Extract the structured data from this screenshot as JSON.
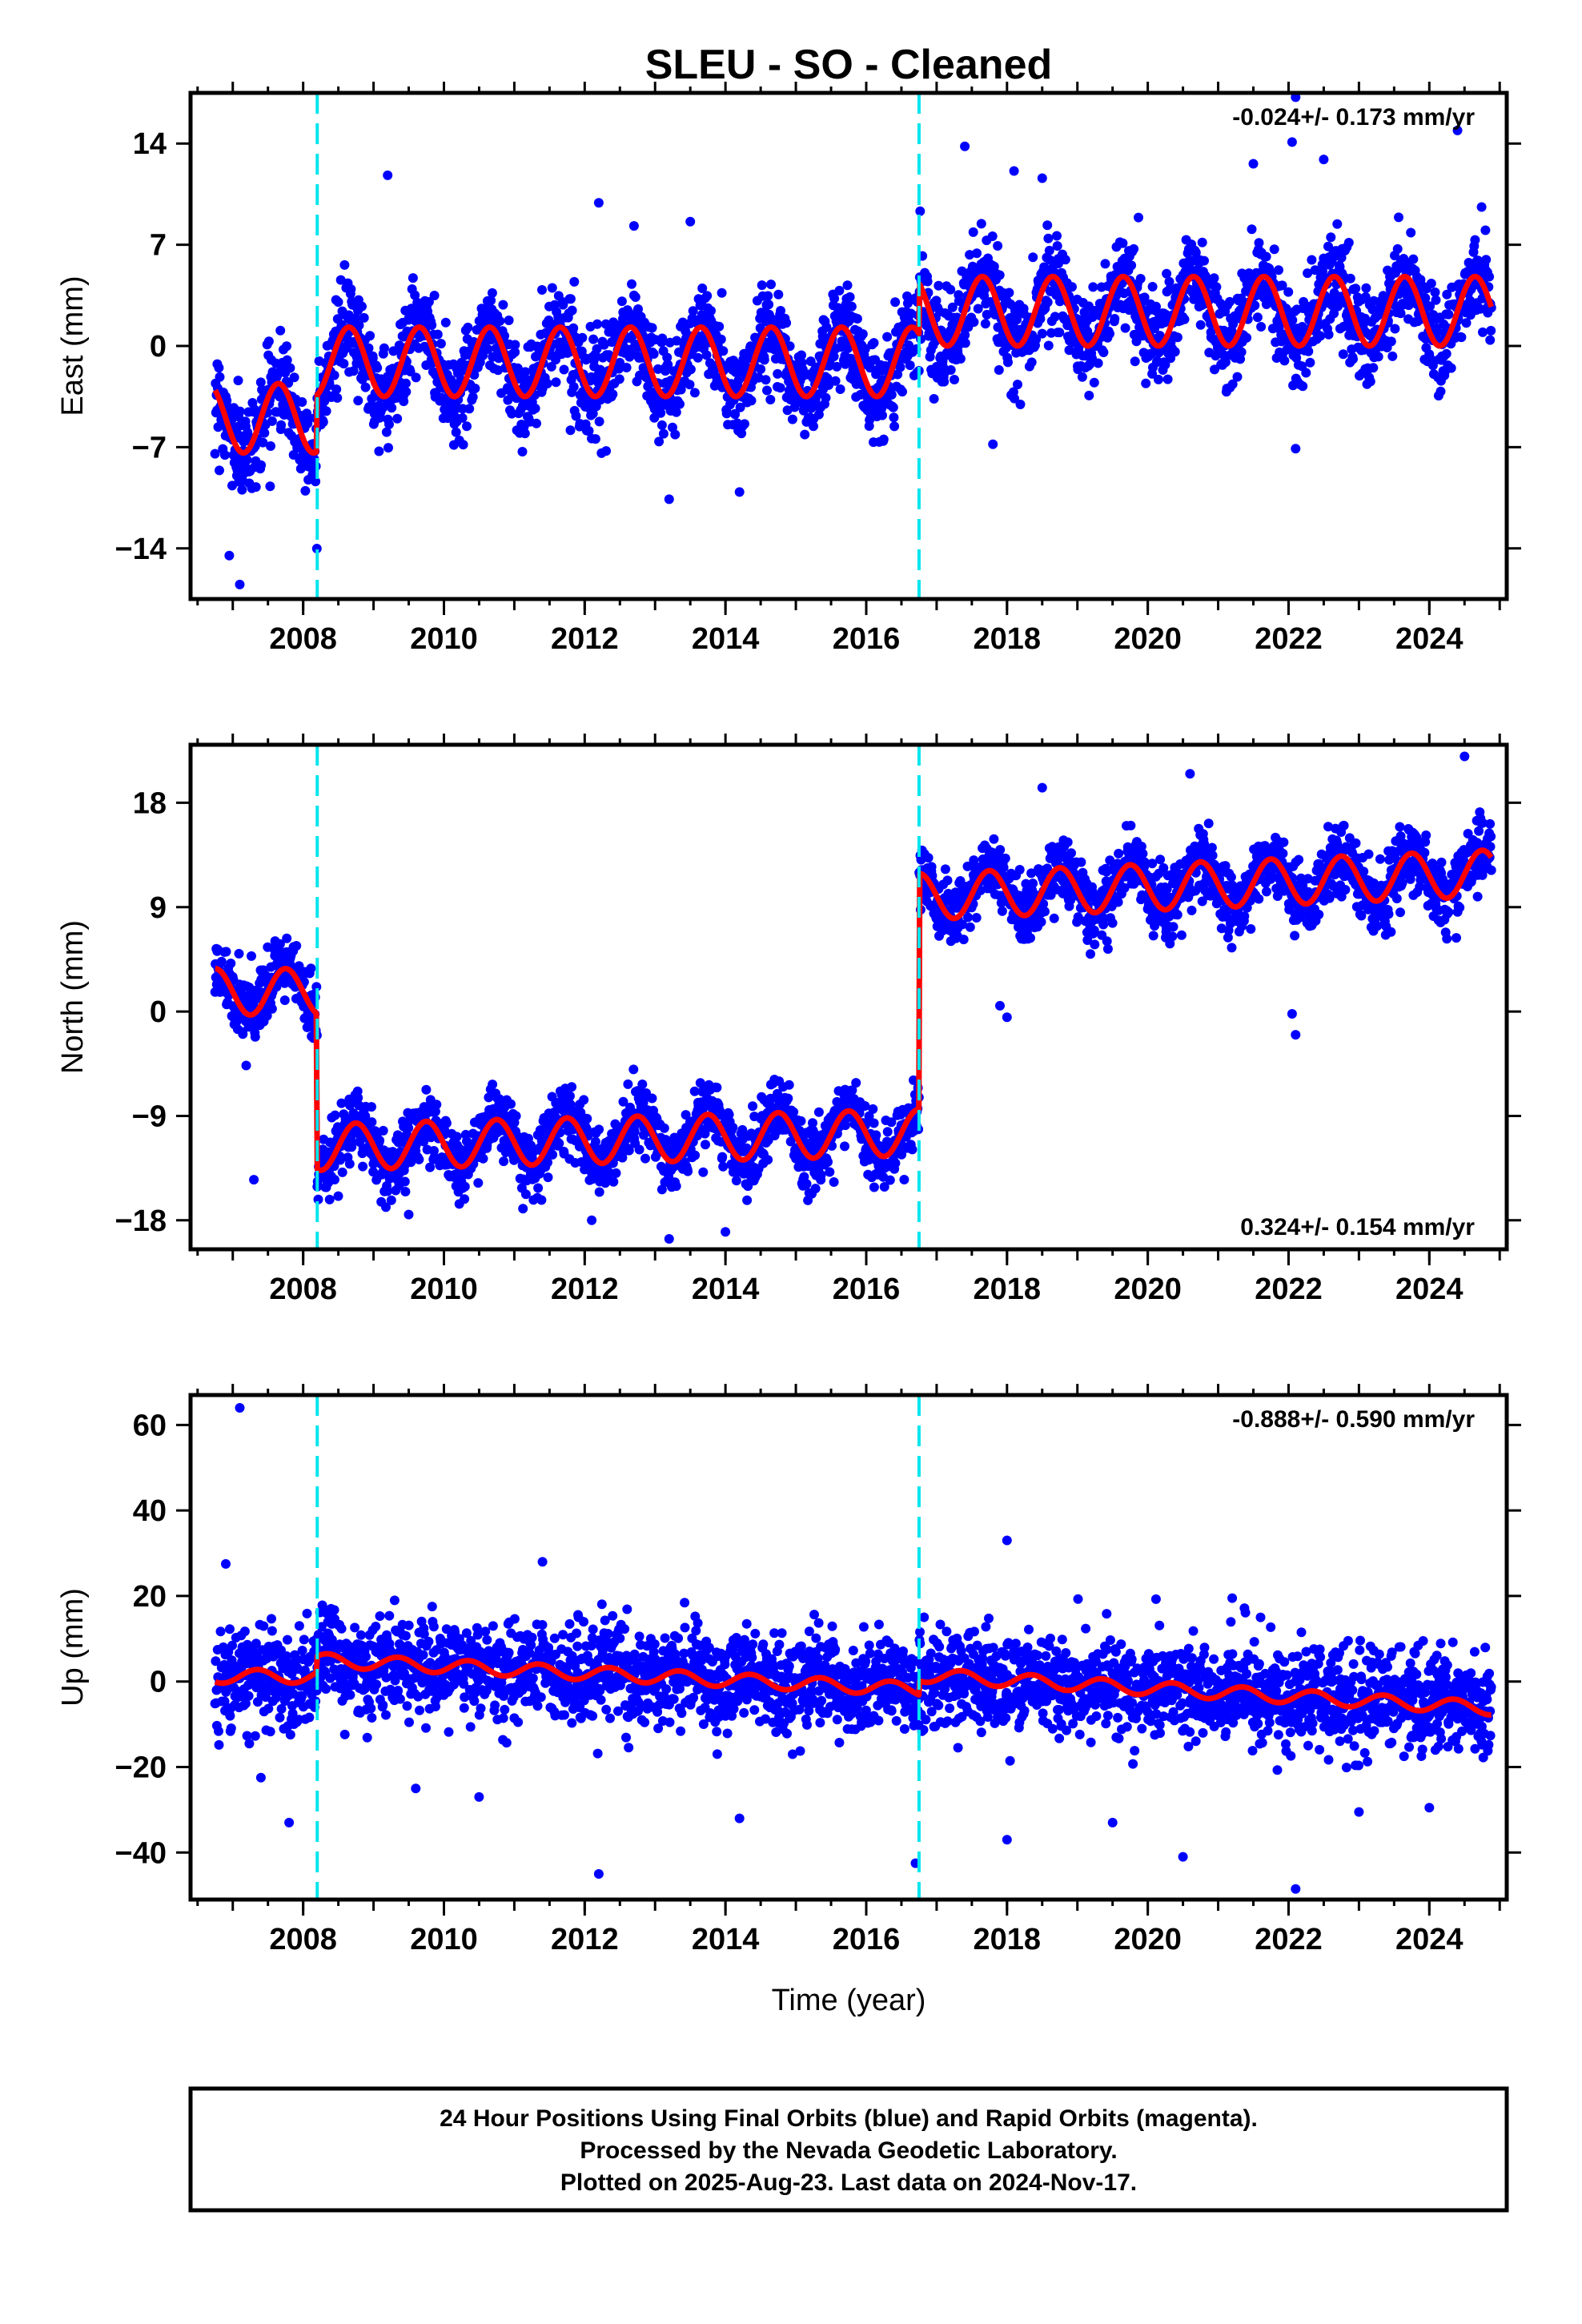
{
  "title": "SLEU  - SO - Cleaned",
  "colors": {
    "points": "#0000ff",
    "model": "#ff0000",
    "offsets": "#00e5ee",
    "frame": "#000000"
  },
  "xlabel": "Time (year)",
  "footer": {
    "line1": "24 Hour Positions Using Final Orbits (blue) and Rapid Orbits (magenta).",
    "line2": "Processed by the Nevada Geodetic Laboratory.",
    "line3": "Plotted on 2025-Aug-23. Last data on 2024-Nov-17."
  },
  "chart_data": [
    {
      "type": "scatter",
      "component": "east",
      "ylabel": "East (mm)",
      "rate_label": "-0.024+/- 0.173 mm/yr",
      "rate_position": "top-right",
      "xlim": [
        2006.4,
        2025.1
      ],
      "ylim": [
        -17.5,
        17.5
      ],
      "x_ticks": [
        2008,
        2010,
        2012,
        2014,
        2016,
        2018,
        2020,
        2022,
        2024
      ],
      "y_ticks": [
        -14,
        -7,
        0,
        7,
        14
      ],
      "offsets": [
        2008.2,
        2016.75
      ],
      "data_start": 2006.75,
      "data_end": 2024.88,
      "scatter_sigma": 1.6,
      "model_segments": [
        {
          "start": 2006.75,
          "end": 2008.2,
          "base": -5.0,
          "amp": 2.4,
          "phase": 0.4,
          "trend": 0.0
        },
        {
          "start": 2008.2,
          "end": 2016.75,
          "base": -1.1,
          "amp": 2.4,
          "phase": 0.4,
          "trend": 0.0
        },
        {
          "start": 2016.75,
          "end": 2024.88,
          "base": 2.4,
          "amp": 2.4,
          "phase": 0.4,
          "trend": 0.0
        }
      ],
      "outliers": [
        {
          "x": 2007.1,
          "y": -16.5
        },
        {
          "x": 2006.95,
          "y": -14.5
        },
        {
          "x": 2009.2,
          "y": 11.8
        },
        {
          "x": 2012.2,
          "y": 9.9
        },
        {
          "x": 2012.7,
          "y": 8.3
        },
        {
          "x": 2013.2,
          "y": -10.6
        },
        {
          "x": 2013.5,
          "y": 8.6
        },
        {
          "x": 2014.2,
          "y": -10.1
        },
        {
          "x": 2017.4,
          "y": 13.8
        },
        {
          "x": 2018.1,
          "y": 12.1
        },
        {
          "x": 2018.5,
          "y": 11.6
        },
        {
          "x": 2021.5,
          "y": 12.6
        },
        {
          "x": 2022.1,
          "y": 17.2
        },
        {
          "x": 2022.05,
          "y": 14.1
        },
        {
          "x": 2022.1,
          "y": -7.1
        },
        {
          "x": 2024.4,
          "y": 14.9
        },
        {
          "x": 2022.5,
          "y": 12.9
        },
        {
          "x": 2017.8,
          "y": -6.8
        }
      ]
    },
    {
      "type": "scatter",
      "component": "north",
      "ylabel": "North (mm)",
      "rate_label": "0.324+/- 0.154 mm/yr",
      "rate_position": "bottom-right",
      "xlim": [
        2006.4,
        2025.1
      ],
      "ylim": [
        -20.5,
        23.0
      ],
      "x_ticks": [
        2008,
        2010,
        2012,
        2014,
        2016,
        2018,
        2020,
        2022,
        2024
      ],
      "y_ticks": [
        -18,
        -9,
        0,
        9,
        18
      ],
      "offsets": [
        2008.2,
        2016.75
      ],
      "data_start": 2006.75,
      "data_end": 2024.88,
      "scatter_sigma": 1.4,
      "model_segments": [
        {
          "start": 2006.75,
          "end": 2008.2,
          "base": 1.7,
          "amp": 2.0,
          "phase": 0.5,
          "trend": 0.0
        },
        {
          "start": 2008.2,
          "end": 2016.75,
          "base": -11.7,
          "amp": 2.0,
          "phase": 0.5,
          "trend": 0.15
        },
        {
          "start": 2016.75,
          "end": 2024.88,
          "base": 9.9,
          "amp": 2.0,
          "phase": 0.5,
          "trend": 0.25
        }
      ],
      "outliers": [
        {
          "x": 2007.3,
          "y": -14.5
        },
        {
          "x": 2009.5,
          "y": -17.5
        },
        {
          "x": 2012.1,
          "y": -18.0
        },
        {
          "x": 2013.2,
          "y": -19.6
        },
        {
          "x": 2014.0,
          "y": -19.0
        },
        {
          "x": 2017.9,
          "y": 0.5
        },
        {
          "x": 2018.0,
          "y": -0.5
        },
        {
          "x": 2022.1,
          "y": -2.0
        },
        {
          "x": 2022.05,
          "y": -0.2
        },
        {
          "x": 2024.5,
          "y": 22.0
        },
        {
          "x": 2020.6,
          "y": 20.5
        },
        {
          "x": 2018.5,
          "y": 19.3
        }
      ]
    },
    {
      "type": "scatter",
      "component": "up",
      "ylabel": "Up (mm)",
      "rate_label": "-0.888+/- 0.590 mm/yr",
      "rate_position": "top-right",
      "xlim": [
        2006.4,
        2025.1
      ],
      "ylim": [
        -51.0,
        67.0
      ],
      "x_ticks": [
        2008,
        2010,
        2012,
        2014,
        2016,
        2018,
        2020,
        2022,
        2024
      ],
      "y_ticks": [
        -40,
        -20,
        0,
        20,
        40,
        60
      ],
      "offsets": [
        2008.2,
        2016.75
      ],
      "data_start": 2006.75,
      "data_end": 2024.88,
      "scatter_sigma": 5.5,
      "model_segments": [
        {
          "start": 2006.75,
          "end": 2008.2,
          "base": 1.2,
          "amp": 1.6,
          "phase": 0.1,
          "trend": 0.0
        },
        {
          "start": 2008.2,
          "end": 2016.75,
          "base": 5.0,
          "amp": 1.6,
          "phase": 0.1,
          "trend": -0.8
        },
        {
          "start": 2016.75,
          "end": 2024.88,
          "base": 1.5,
          "amp": 1.6,
          "phase": 0.1,
          "trend": -0.95
        }
      ],
      "outliers": [
        {
          "x": 2007.1,
          "y": 64.0
        },
        {
          "x": 2006.9,
          "y": 27.5
        },
        {
          "x": 2007.4,
          "y": -22.5
        },
        {
          "x": 2007.8,
          "y": -33.0
        },
        {
          "x": 2012.2,
          "y": -45.0
        },
        {
          "x": 2011.4,
          "y": 28.0
        },
        {
          "x": 2014.2,
          "y": -32.0
        },
        {
          "x": 2016.7,
          "y": -42.5
        },
        {
          "x": 2018.0,
          "y": 33.0
        },
        {
          "x": 2018.0,
          "y": -37.0
        },
        {
          "x": 2019.5,
          "y": -33.0
        },
        {
          "x": 2020.5,
          "y": -41.0
        },
        {
          "x": 2022.1,
          "y": -48.5
        },
        {
          "x": 2023.0,
          "y": -30.5
        },
        {
          "x": 2024.0,
          "y": -29.5
        },
        {
          "x": 2010.5,
          "y": -27.0
        },
        {
          "x": 2009.6,
          "y": -25.0
        },
        {
          "x": 2021.2,
          "y": 19.5
        }
      ]
    }
  ]
}
